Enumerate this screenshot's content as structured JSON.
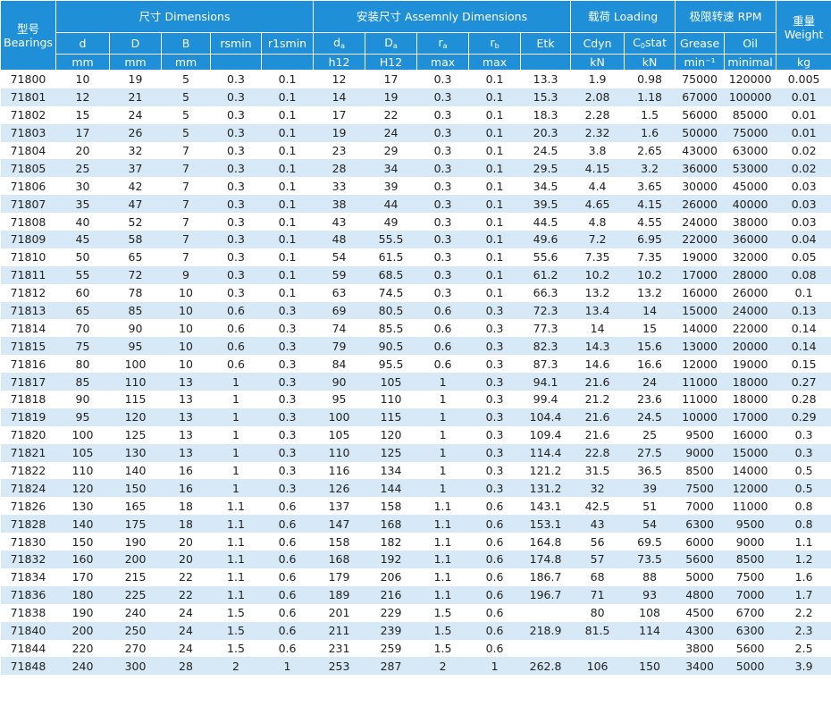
{
  "table": {
    "bearing_header": "型号 Bearings",
    "groups": [
      {
        "label": "尺寸 Dimensions",
        "columns": [
          {
            "name": "d",
            "unit": "mm"
          },
          {
            "name": "D",
            "unit": "mm"
          },
          {
            "name": "B",
            "unit": "mm"
          },
          {
            "name": "rsmin"
          },
          {
            "name": "r1smin"
          }
        ]
      },
      {
        "label": "安装尺寸 Assemnly Dimensions",
        "columns": [
          {
            "name": {
              "base": "d",
              "sub": "a"
            },
            "unit": "h12"
          },
          {
            "name": {
              "base": "D",
              "sub": "a"
            },
            "unit": "H12"
          },
          {
            "name": {
              "base": "r",
              "sub": "a"
            },
            "unit": "max"
          },
          {
            "name": {
              "base": "r",
              "sub": "b"
            },
            "unit": "max"
          },
          {
            "name": "Etk"
          }
        ]
      },
      {
        "label": "载荷 Loading",
        "columns": [
          {
            "name": "Cdyn",
            "unit": "kN"
          },
          {
            "name": {
              "base": "C",
              "sub": "0",
              "tail": "stat"
            },
            "unit": "kN"
          }
        ]
      },
      {
        "label": "极限转速 RPM",
        "columns": [
          {
            "name": "Grease",
            "unit": "min⁻¹"
          },
          {
            "name": "Oil",
            "unit": "minimal"
          }
        ]
      },
      {
        "label": "重量 Weight",
        "columns": [
          {
            "unit": "kg"
          }
        ]
      }
    ],
    "rows": [
      [
        "71800",
        10,
        19,
        5,
        0.3,
        0.1,
        12,
        17,
        0.3,
        0.1,
        13.3,
        1.9,
        0.98,
        75000,
        120000,
        0.005
      ],
      [
        "71801",
        12,
        21,
        5,
        0.3,
        0.1,
        14,
        19,
        0.3,
        0.1,
        15.3,
        2.08,
        1.18,
        67000,
        100000,
        0.01
      ],
      [
        "71802",
        15,
        24,
        5,
        0.3,
        0.1,
        17,
        22,
        0.3,
        0.1,
        18.3,
        2.28,
        1.5,
        56000,
        85000,
        0.01
      ],
      [
        "71803",
        17,
        26,
        5,
        0.3,
        0.1,
        19,
        24,
        0.3,
        0.1,
        20.3,
        2.32,
        1.6,
        50000,
        75000,
        0.01
      ],
      [
        "71804",
        20,
        32,
        7,
        0.3,
        0.1,
        23,
        29,
        0.3,
        0.1,
        24.5,
        3.8,
        2.65,
        43000,
        63000,
        0.02
      ],
      [
        "71805",
        25,
        37,
        7,
        0.3,
        0.1,
        28,
        34,
        0.3,
        0.1,
        29.5,
        4.15,
        3.2,
        36000,
        53000,
        0.02
      ],
      [
        "71806",
        30,
        42,
        7,
        0.3,
        0.1,
        33,
        39,
        0.3,
        0.1,
        34.5,
        4.4,
        3.65,
        30000,
        45000,
        0.03
      ],
      [
        "71807",
        35,
        47,
        7,
        0.3,
        0.1,
        38,
        44,
        0.3,
        0.1,
        39.5,
        4.65,
        4.15,
        26000,
        40000,
        0.03
      ],
      [
        "71808",
        40,
        52,
        7,
        0.3,
        0.1,
        43,
        49,
        0.3,
        0.1,
        44.5,
        4.8,
        4.55,
        24000,
        38000,
        0.03
      ],
      [
        "71809",
        45,
        58,
        7,
        0.3,
        0.1,
        48,
        55.5,
        0.3,
        0.1,
        49.6,
        7.2,
        6.95,
        22000,
        36000,
        0.04
      ],
      [
        "71810",
        50,
        65,
        7,
        0.3,
        0.1,
        54,
        61.5,
        0.3,
        0.1,
        55.6,
        7.35,
        7.35,
        19000,
        32000,
        0.05
      ],
      [
        "71811",
        55,
        72,
        9,
        0.3,
        0.1,
        59,
        68.5,
        0.3,
        0.1,
        61.2,
        10.2,
        10.2,
        17000,
        28000,
        0.08
      ],
      [
        "71812",
        60,
        78,
        10,
        0.3,
        0.1,
        63,
        74.5,
        0.3,
        0.1,
        66.3,
        13.2,
        13.2,
        16000,
        26000,
        0.1
      ],
      [
        "71813",
        65,
        85,
        10,
        0.6,
        0.3,
        69,
        80.5,
        0.6,
        0.3,
        72.3,
        13.4,
        14,
        15000,
        24000,
        0.13
      ],
      [
        "71814",
        70,
        90,
        10,
        0.6,
        0.3,
        74,
        85.5,
        0.6,
        0.3,
        77.3,
        14,
        15,
        14000,
        22000,
        0.14
      ],
      [
        "71815",
        75,
        95,
        10,
        0.6,
        0.3,
        79,
        90.5,
        0.6,
        0.3,
        82.3,
        14.3,
        15.6,
        13000,
        20000,
        0.14
      ],
      [
        "71816",
        80,
        100,
        10,
        0.6,
        0.3,
        84,
        95.5,
        0.6,
        0.3,
        87.3,
        14.6,
        16.6,
        12000,
        19000,
        0.15
      ],
      [
        "71817",
        85,
        110,
        13,
        1,
        0.3,
        90,
        105,
        1,
        0.3,
        94.1,
        21.6,
        24,
        11000,
        18000,
        0.27
      ],
      [
        "71818",
        90,
        115,
        13,
        1,
        0.3,
        95,
        110,
        1,
        0.3,
        99.4,
        21.2,
        23.6,
        11000,
        18000,
        0.28
      ],
      [
        "71819",
        95,
        120,
        13,
        1,
        0.3,
        100,
        115,
        1,
        0.3,
        104.4,
        21.6,
        24.5,
        10000,
        17000,
        0.29
      ],
      [
        "71820",
        100,
        125,
        13,
        1,
        0.3,
        105,
        120,
        1,
        0.3,
        109.4,
        21.6,
        25,
        9500,
        16000,
        0.3
      ],
      [
        "71821",
        105,
        130,
        13,
        1,
        0.3,
        110,
        125,
        1,
        0.3,
        114.4,
        22.8,
        27.5,
        9000,
        15000,
        0.3
      ],
      [
        "71822",
        110,
        140,
        16,
        1,
        0.3,
        116,
        134,
        1,
        0.3,
        121.2,
        31.5,
        36.5,
        8500,
        14000,
        0.5
      ],
      [
        "71824",
        120,
        150,
        16,
        1,
        0.3,
        126,
        144,
        1,
        0.3,
        131.2,
        32,
        39,
        7500,
        12000,
        0.5
      ],
      [
        "71826",
        130,
        165,
        18,
        1.1,
        0.6,
        137,
        158,
        1.1,
        0.6,
        143.1,
        42.5,
        51,
        7000,
        11000,
        0.8
      ],
      [
        "71828",
        140,
        175,
        18,
        1.1,
        0.6,
        147,
        168,
        1.1,
        0.6,
        153.1,
        43,
        54,
        6300,
        9500,
        0.8
      ],
      [
        "71830",
        150,
        190,
        20,
        1.1,
        0.6,
        158,
        182,
        1.1,
        0.6,
        164.8,
        56,
        69.5,
        6000,
        9000,
        1.1
      ],
      [
        "71832",
        160,
        200,
        20,
        1.1,
        0.6,
        168,
        192,
        1.1,
        0.6,
        174.8,
        57,
        73.5,
        5600,
        8500,
        1.2
      ],
      [
        "71834",
        170,
        215,
        22,
        1.1,
        0.6,
        179,
        206,
        1.1,
        0.6,
        186.7,
        68,
        88,
        5000,
        7500,
        1.6
      ],
      [
        "71836",
        180,
        225,
        22,
        1.1,
        0.6,
        189,
        216,
        1.1,
        0.6,
        196.7,
        71,
        93,
        4800,
        7000,
        1.7
      ],
      [
        "71838",
        190,
        240,
        24,
        1.5,
        0.6,
        201,
        229,
        1.5,
        0.6,
        null,
        80,
        108,
        4500,
        6700,
        2.2
      ],
      [
        "71840",
        200,
        250,
        24,
        1.5,
        0.6,
        211,
        239,
        1.5,
        0.6,
        218.9,
        81.5,
        114,
        4300,
        6300,
        2.3
      ],
      [
        "71844",
        220,
        270,
        24,
        1.5,
        0.6,
        231,
        259,
        1.5,
        0.6,
        null,
        null,
        null,
        3800,
        5600,
        2.5
      ],
      [
        "71848",
        240,
        300,
        28,
        2,
        1,
        253,
        287,
        2,
        1,
        262.8,
        106,
        150,
        3400,
        5000,
        3.9
      ]
    ]
  }
}
